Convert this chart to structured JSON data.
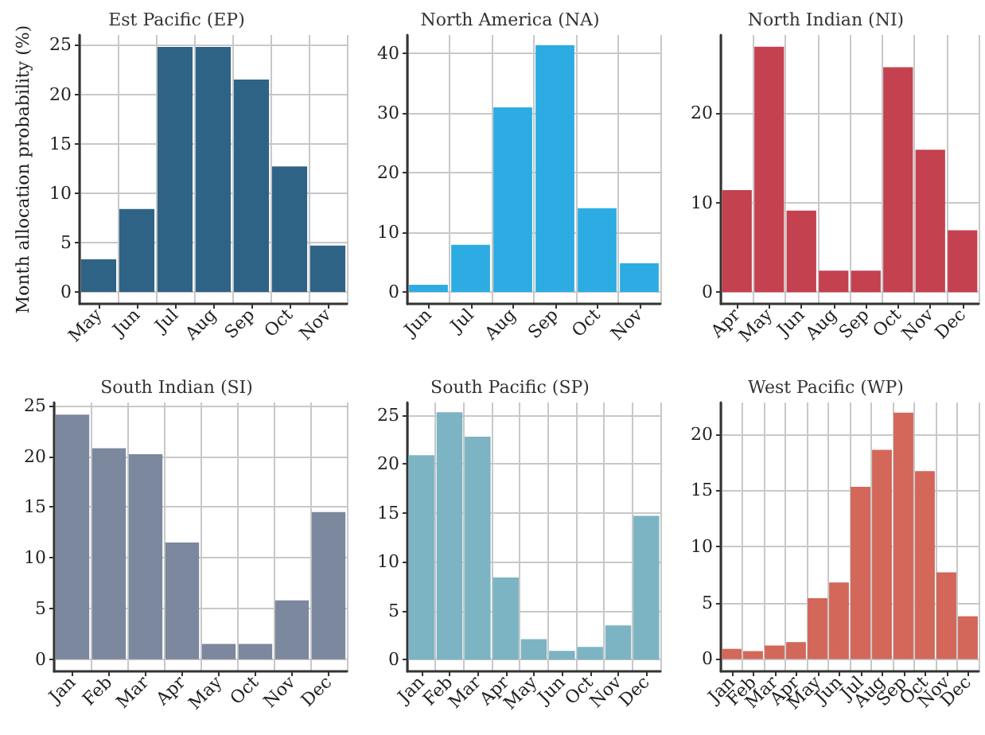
{
  "chart_data": [
    {
      "type": "bar",
      "title": "Est Pacific (EP)",
      "ylabel": "Month allocation probability (%)",
      "categories": [
        "May",
        "Jun",
        "Jul",
        "Aug",
        "Sep",
        "Oct",
        "Nov"
      ],
      "values": [
        3.3,
        8.4,
        24.8,
        24.8,
        21.5,
        12.7,
        4.7
      ],
      "color": "#2f6386",
      "ylim": [
        -1.2,
        26
      ],
      "yticks": [
        0,
        5,
        10,
        15,
        20,
        25
      ],
      "grid": true
    },
    {
      "type": "bar",
      "title": "North America (NA)",
      "categories": [
        "Jun",
        "Jul",
        "Aug",
        "Sep",
        "Oct",
        "Nov"
      ],
      "values": [
        1.2,
        7.9,
        30.9,
        41.3,
        14,
        4.8
      ],
      "color": "#2dace3",
      "ylim": [
        -2,
        43
      ],
      "yticks": [
        0,
        10,
        20,
        30,
        40
      ],
      "grid": true
    },
    {
      "type": "bar",
      "title": "North Indian (NI)",
      "categories": [
        "Apr",
        "May",
        "Jun",
        "Aug",
        "Sep",
        "Oct",
        "Nov",
        "Dec"
      ],
      "values": [
        11.4,
        27.4,
        9.1,
        2.4,
        2.4,
        25.1,
        15.9,
        6.9
      ],
      "color": "#c4414f",
      "ylim": [
        -1.3,
        28.7
      ],
      "yticks": [
        0,
        10,
        20
      ],
      "grid": true
    },
    {
      "type": "bar",
      "title": "South Indian (SI)",
      "categories": [
        "Jan",
        "Feb",
        "Mar",
        "Apr",
        "May",
        "Oct",
        "Nov",
        "Dec"
      ],
      "values": [
        24.1,
        20.8,
        20.2,
        11.5,
        1.5,
        1.5,
        5.8,
        14.5
      ],
      "color": "#7b889e",
      "ylim": [
        -1.2,
        25.3
      ],
      "yticks": [
        0,
        5,
        10,
        15,
        20,
        25
      ],
      "grid": true
    },
    {
      "type": "bar",
      "title": "South Pacific (SP)",
      "categories": [
        "Jan",
        "Feb",
        "Mar",
        "Apr",
        "May",
        "Jun",
        "Oct",
        "Nov",
        "Dec"
      ],
      "values": [
        20.9,
        25.3,
        22.8,
        8.4,
        2.1,
        0.9,
        1.3,
        3.5,
        14.7
      ],
      "color": "#7cb4c3",
      "ylim": [
        -1.2,
        26.3
      ],
      "yticks": [
        0,
        5,
        10,
        15,
        20,
        25
      ],
      "grid": true
    },
    {
      "type": "bar",
      "title": "West Pacific (WP)",
      "categories": [
        "Jan",
        "Feb",
        "Mar",
        "Apr",
        "May",
        "Jun",
        "Jul",
        "Aug",
        "Sep",
        "Oct",
        "Nov",
        "Dec"
      ],
      "values": [
        0.9,
        0.7,
        1.2,
        1.5,
        5.4,
        6.8,
        15.3,
        18.6,
        21.9,
        16.7,
        7.7,
        3.8
      ],
      "color": "#d2675a",
      "ylim": [
        -1.1,
        22.8
      ],
      "yticks": [
        0,
        5,
        10,
        15,
        20
      ],
      "grid": true
    }
  ]
}
